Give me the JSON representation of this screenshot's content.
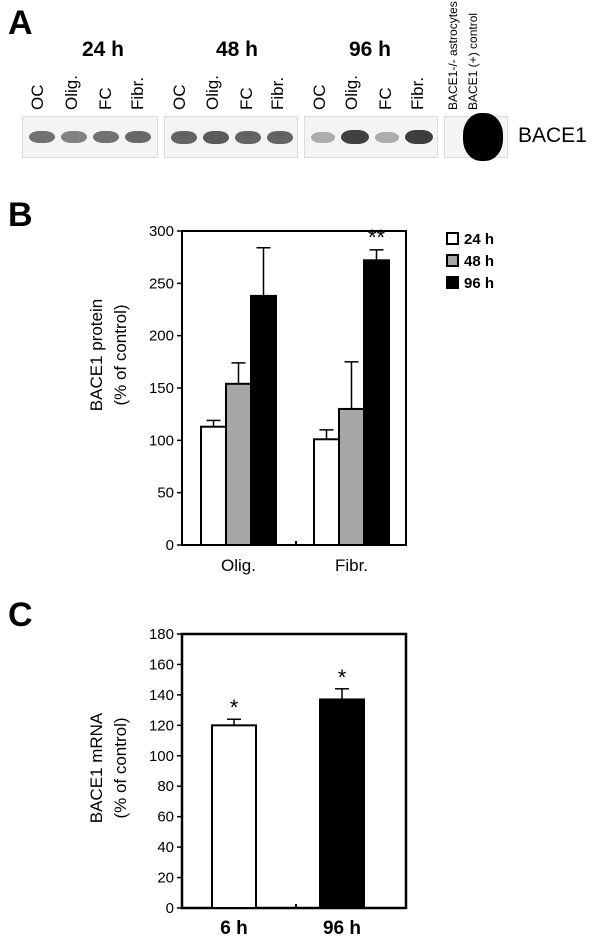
{
  "panels": {
    "a": "A",
    "b": "B",
    "c": "C"
  },
  "blot": {
    "timepoints": [
      "24 h",
      "48 h",
      "96 h"
    ],
    "lanes": [
      "OC",
      "Olig.",
      "FC",
      "Fibr."
    ],
    "extra_lanes": [
      "BACE1-/- astrocytes",
      "BACE1 (+) control"
    ],
    "protein_label": "BACE1",
    "band_color": "#333333"
  },
  "chart_data": [
    {
      "type": "bar",
      "categories": [
        "Olig.",
        "Fibr."
      ],
      "series": [
        {
          "name": "24 h",
          "values": [
            113,
            101
          ],
          "errors": [
            6,
            9
          ],
          "color": "#ffffff"
        },
        {
          "name": "48 h",
          "values": [
            154,
            130
          ],
          "errors": [
            20,
            45
          ],
          "color": "#a6a6a6"
        },
        {
          "name": "96 h",
          "values": [
            238,
            272
          ],
          "errors": [
            46,
            10
          ],
          "color": "#000000"
        }
      ],
      "ylabel_line1": "BACE1 protein",
      "ylabel_line2": "(% of control)",
      "ylim": [
        0,
        300
      ],
      "yticks": [
        0,
        50,
        100,
        150,
        200,
        250,
        300
      ],
      "annotations": [
        {
          "category": "Fibr.",
          "series": "96 h",
          "text": "**"
        }
      ],
      "legend": "top-right"
    },
    {
      "type": "bar",
      "categories": [
        "6 h",
        "96 h"
      ],
      "values": [
        120,
        137
      ],
      "errors": [
        4,
        7
      ],
      "colors": [
        "#ffffff",
        "#000000"
      ],
      "ylabel_line1": "BACE1 mRNA",
      "ylabel_line2": "(% of control)",
      "ylim": [
        0,
        180
      ],
      "yticks": [
        0,
        20,
        40,
        60,
        80,
        100,
        120,
        140,
        160,
        180
      ],
      "annotations": [
        {
          "category": "6 h",
          "text": "*"
        },
        {
          "category": "96 h",
          "text": "*"
        }
      ]
    }
  ]
}
